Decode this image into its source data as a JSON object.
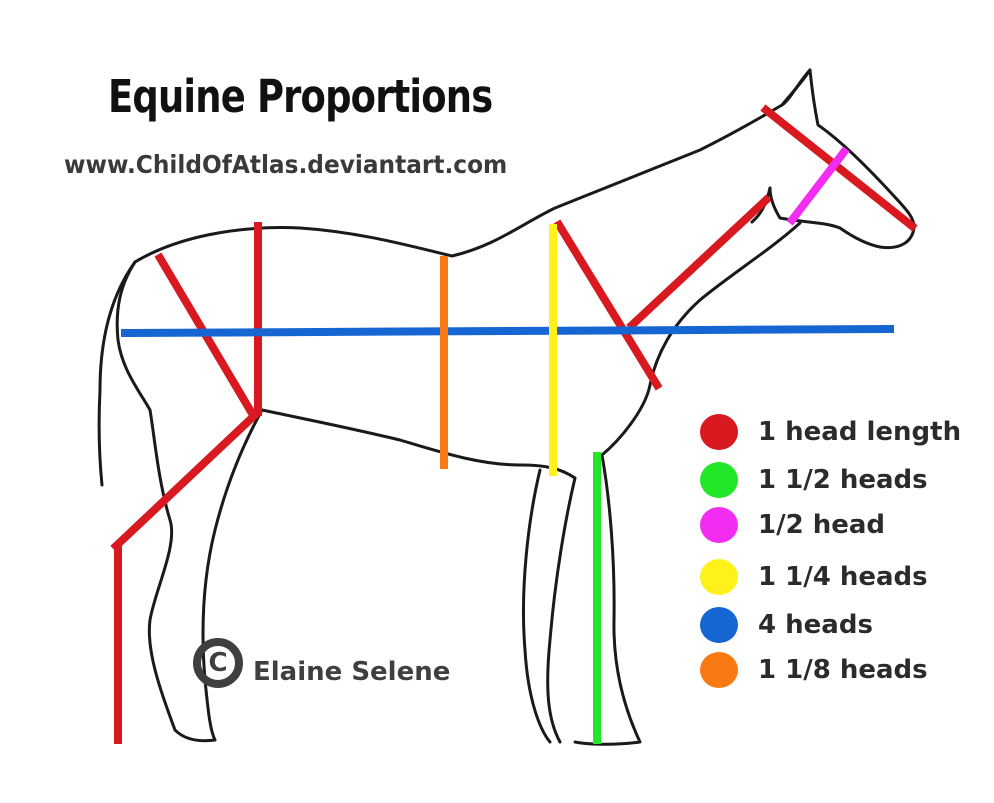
{
  "title": "Equine Proportions",
  "website": "www.ChildOfAtlas.deviantart.com",
  "credit": {
    "symbol": "C",
    "name": "Elaine Selene"
  },
  "legend": [
    {
      "label": "1 head length",
      "color": "#d91920"
    },
    {
      "label": "1 1/2 heads",
      "color": "#22e628"
    },
    {
      "label": "1/2 head",
      "color": "#f22cf0"
    },
    {
      "label": "1 1/4 heads",
      "color": "#fff21a"
    },
    {
      "label": "4 heads",
      "color": "#1565d2"
    },
    {
      "label": "1 1/8 heads",
      "color": "#f97a12"
    }
  ]
}
